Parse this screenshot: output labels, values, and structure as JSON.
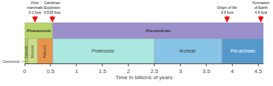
{
  "chart_data": {
    "type": "timeline",
    "xlabel": "Time in billions of years",
    "xlim": [
      0,
      4.6
    ],
    "xticks": [
      0,
      0.5,
      1,
      1.5,
      2,
      2.5,
      3,
      3.5,
      4,
      4.5
    ],
    "grid": false,
    "rows": [
      [
        {
          "label": "Phanerozoic",
          "start": 0,
          "width": 0.541,
          "color": "#b8d46a",
          "text_color": "#333333"
        },
        {
          "label": "Precambrian",
          "start": 0.541,
          "width": 4.059,
          "color": "#9b8fcc",
          "text_color": "#333333"
        }
      ],
      [
        {
          "label": "Cenozoic",
          "start": 0,
          "width": 0.065,
          "color": "#aacc55",
          "text_color": "#333333"
        },
        {
          "label": "Mesozoic",
          "start": 0.065,
          "width": 0.185,
          "color": "#ccdd88",
          "text_color": "#333333"
        },
        {
          "label": "Paleozoic",
          "start": 0.25,
          "width": 0.291,
          "color": "#e8954a",
          "text_color": "#333333"
        },
        {
          "label": "Proterozoic",
          "start": 0.541,
          "width": 1.959,
          "color": "#aae8e0",
          "text_color": "#333333"
        },
        {
          "label": "Archean",
          "start": 2.5,
          "width": 1.3,
          "color": "#88c4e8",
          "text_color": "#333333"
        },
        {
          "label": "Pre-archean",
          "start": 3.8,
          "width": 0.8,
          "color": "#5599cc",
          "text_color": "#ffffff"
        }
      ]
    ],
    "annotations": [
      {
        "text": "First\nmammals\n0.2 bya",
        "x": 0.2,
        "color": "red"
      },
      {
        "text": "Cambrian\nExplosion\n0.535 bya",
        "x": 0.535,
        "color": "red"
      },
      {
        "text": "Origin of life\n3.9 bya",
        "x": 3.9,
        "color": "red"
      },
      {
        "text": "Formation\nof Earth\n4.6 bya",
        "x": 4.55,
        "color": "red"
      }
    ],
    "callouts": [
      {
        "text": "Cenozoic",
        "x": 0.032
      }
    ]
  }
}
